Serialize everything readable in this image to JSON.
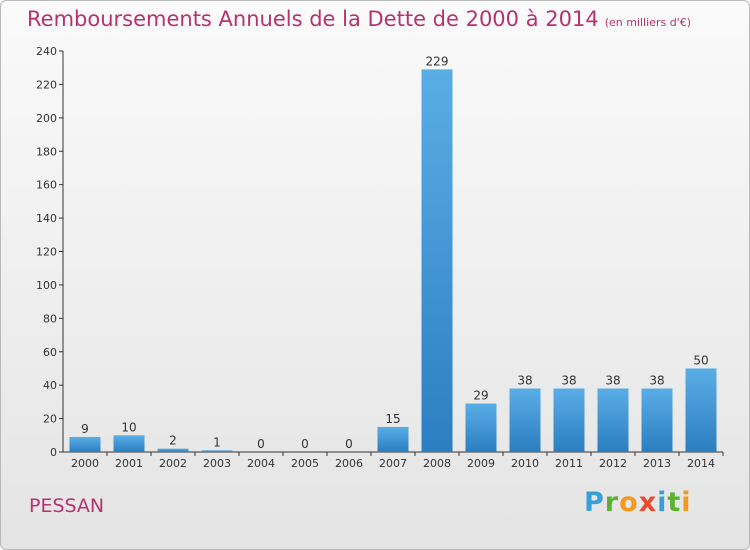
{
  "title": "Remboursements Annuels de la Dette de 2000 à 2014",
  "unit": "(en milliers d'€)",
  "place": "PESSAN",
  "logo": {
    "letters": [
      "P",
      "r",
      "o",
      "x",
      "i",
      "t",
      "i"
    ],
    "colors": [
      "#3a9fd8",
      "#5cb132",
      "#f39a1e",
      "#e84b2c",
      "#3a9fd8",
      "#5cb132",
      "#f39a1e"
    ]
  },
  "colors": {
    "title": "#b5336f",
    "bar_light": "#5aaee6",
    "bar_dark": "#2b7ec0",
    "axis": "#333333"
  },
  "chart_data": {
    "type": "bar",
    "categories": [
      "2000",
      "2001",
      "2002",
      "2003",
      "2004",
      "2005",
      "2006",
      "2007",
      "2008",
      "2009",
      "2010",
      "2011",
      "2012",
      "2013",
      "2014"
    ],
    "values": [
      9,
      10,
      2,
      1,
      0,
      0,
      0,
      15,
      229,
      29,
      38,
      38,
      38,
      38,
      50
    ],
    "data_labels": [
      "9",
      "10",
      "2",
      "1",
      "0",
      "0",
      "0",
      "15",
      "229",
      "29",
      "38",
      "38",
      "38",
      "38",
      "50"
    ],
    "yticks": [
      0,
      20,
      40,
      60,
      80,
      100,
      120,
      140,
      160,
      180,
      200,
      220,
      240
    ],
    "ylim": [
      0,
      240
    ],
    "grid": false,
    "legend": "none"
  }
}
